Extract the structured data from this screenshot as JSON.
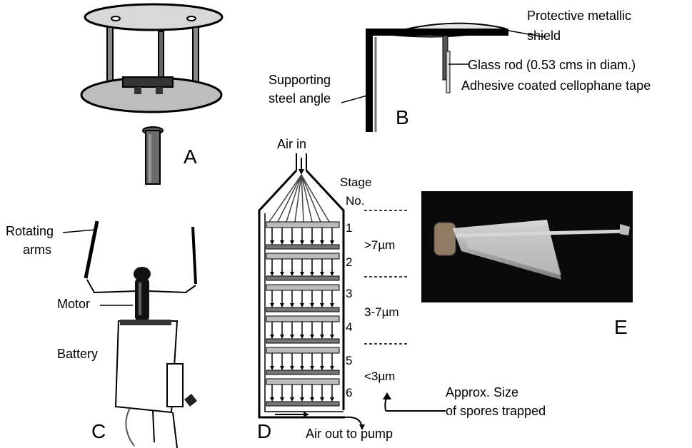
{
  "panels": {
    "a": {
      "letter": "A"
    },
    "b": {
      "letter": "B",
      "shield_label_line1": "Protective metallic",
      "shield_label_line2": "shield",
      "rod_label": "Glass rod (0.53 cms in diam.)",
      "tape_label": "Adhesive coated cellophane tape",
      "angle_label_line1": "Supporting",
      "angle_label_line2": "steel angle"
    },
    "c": {
      "letter": "C",
      "arms_label_line1": "Rotating",
      "arms_label_line2": "arms",
      "motor_label": "Motor",
      "battery_label": "Battery"
    },
    "d": {
      "letter": "D",
      "air_in": "Air in",
      "stage_header_line1": "Stage",
      "stage_header_line2": "No.",
      "stages": [
        "1",
        "2",
        "3",
        "4",
        "5",
        "6"
      ],
      "size_ranges": [
        ">7µm",
        "3-7µm",
        "<3µm"
      ],
      "air_out": "Air out to pump",
      "size_note_line1": "Approx. Size",
      "size_note_line2": "of spores trapped"
    },
    "e": {
      "letter": "E"
    }
  },
  "colors": {
    "ink": "#000000",
    "paper": "#ffffff",
    "grey": "#9a9a9a",
    "photo_bg": "#0a0a0a"
  },
  "icons": [
    "spore-trap-stand-icon",
    "rotating-arm-sampler-icon",
    "cascade-impactor-icon",
    "slide-holder-photo"
  ]
}
